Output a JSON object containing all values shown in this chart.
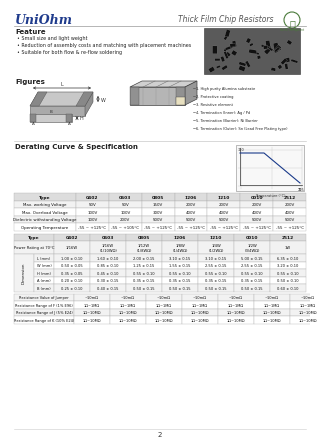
{
  "title_left": "UniOhm",
  "title_right": "Thick Film Chip Resistors",
  "feature_title": "Feature",
  "features": [
    "Small size and light weight",
    "Reduction of assembly costs and matching with placement machines",
    "Suitable for both flow & re-flow soldering"
  ],
  "figures_title": "Figures",
  "derating_title": "Derating Curve & Specification",
  "table1_headers": [
    "Type",
    "0402",
    "0603",
    "0805",
    "1206",
    "1210",
    "0010",
    "2512"
  ],
  "table1_rows": [
    [
      "Max. working Voltage",
      "50V",
      "50V",
      "150V",
      "200V",
      "200V",
      "200V",
      "200V"
    ],
    [
      "Max. Overload Voltage",
      "100V",
      "100V",
      "300V",
      "400V",
      "400V",
      "400V",
      "400V"
    ],
    [
      "Dielectric withstanding Voltage",
      "100V",
      "200V",
      "500V",
      "500V",
      "500V",
      "500V",
      "500V"
    ],
    [
      "Operating Temperature",
      "-55 ~ +125°C",
      "-55 ~ +105°C",
      "-55 ~ +125°C",
      "-55 ~ +125°C",
      "-55 ~ +125°C",
      "-55 ~ +125°C",
      "-55 ~ +125°C"
    ]
  ],
  "table2_headers": [
    "Type",
    "0402",
    "0603",
    "0805",
    "1206",
    "1210",
    "0010",
    "2512"
  ],
  "table2_rows_power": [
    "Power Rating at 70°C",
    "1/16W",
    "1/16W\n(1/10WΩ)",
    "1/12W\n(1/8WΩ)",
    "1/8W\n(1/4WΩ)",
    "1/4W\n(1/2WΩ)",
    "1/2W\n(3/4WΩ)",
    "1W"
  ],
  "dim_rows": [
    [
      "L (mm)",
      "1.00 ± 0.10",
      "1.60 ± 0.10",
      "2.00 ± 0.15",
      "3.10 ± 0.15",
      "3.10 ± 0.15",
      "5.00 ± 0.15",
      "6.35 ± 0.10"
    ],
    [
      "W (mm)",
      "0.50 ± 0.05",
      "0.85 ± 0.10",
      "1.25 ± 0.15",
      "1.55 ± 0.15",
      "2.55 ± 0.15",
      "2.55 ± 0.15",
      "3.20 ± 0.10"
    ],
    [
      "H (mm)",
      "0.35 ± 0.05",
      "0.45 ± 0.10",
      "0.55 ± 0.10",
      "0.55 ± 0.10",
      "0.55 ± 0.10",
      "0.55 ± 0.10",
      "0.55 ± 0.10"
    ],
    [
      "A (mm)",
      "0.20 ± 0.10",
      "0.30 ± 0.15",
      "0.35 ± 0.15",
      "0.35 ± 0.15",
      "0.35 ± 0.15",
      "0.35 ± 0.15",
      "0.50 ± 0.10"
    ],
    [
      "B (mm)",
      "0.25 ± 0.10",
      "0.40 ± 0.15",
      "0.50 ± 0.15",
      "0.50 ± 0.15",
      "0.50 ± 0.15",
      "0.50 ± 0.15",
      "0.60 ± 0.10"
    ]
  ],
  "range_rows": [
    [
      "Resistance Value of Jumper",
      "~10mΩ",
      "~10mΩ",
      "~10mΩ",
      "~10mΩ",
      "~10mΩ",
      "~10mΩ",
      "~10mΩ"
    ],
    [
      "Resistance Range of F (1% E96)",
      "1Ω~1MΩ",
      "1Ω~1MΩ",
      "1Ω~1MΩ",
      "1Ω~1MΩ",
      "1Ω~1MΩ",
      "1Ω~1MΩ",
      "1Ω~1MΩ"
    ],
    [
      "Resistance Range of J (5% E24)",
      "1Ω~10MΩ",
      "1Ω~10MΩ",
      "1Ω~10MΩ",
      "1Ω~10MΩ",
      "1Ω~10MΩ",
      "1Ω~10MΩ",
      "1Ω~10MΩ"
    ],
    [
      "Resistance Range of K (10% E24)",
      "1Ω~10MΩ",
      "1Ω~10MΩ",
      "1Ω~10MΩ",
      "1Ω~10MΩ",
      "1Ω~10MΩ",
      "1Ω~10MΩ",
      "1Ω~10MΩ"
    ]
  ],
  "bg_color": "#ffffff",
  "blue_color": "#1f3b8c",
  "page_num": "2",
  "chip_notes": [
    "1. High purity Alumina substrate",
    "2. Protective coating",
    "3. Resistive element",
    "4. Termination (Inner): Ag / Pd",
    "5. Termination (Barrier): Ni Barrier",
    "6. Termination (Outer): Sn (Lead Free Plating type)"
  ]
}
